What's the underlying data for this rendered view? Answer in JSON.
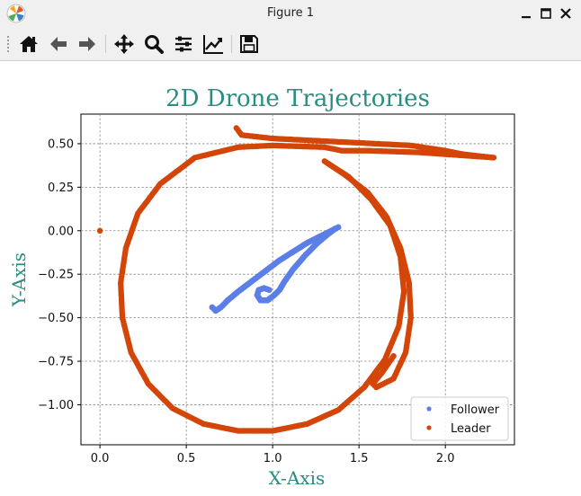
{
  "window": {
    "title": "Figure 1",
    "app_icon": "matplotlib-icon",
    "controls": [
      "minimize-icon",
      "maximize-icon",
      "close-icon"
    ]
  },
  "toolbar": {
    "buttons": [
      {
        "name": "home-icon",
        "label": "Home"
      },
      {
        "name": "back-icon",
        "label": "Back"
      },
      {
        "name": "forward-icon",
        "label": "Forward"
      },
      {
        "name": "pan-icon",
        "label": "Pan"
      },
      {
        "name": "zoom-icon",
        "label": "Zoom"
      },
      {
        "name": "subplots-icon",
        "label": "Subplots"
      },
      {
        "name": "customize-icon",
        "label": "Customize"
      },
      {
        "name": "save-icon",
        "label": "Save"
      }
    ]
  },
  "colors": {
    "title": "#2a8c82",
    "axis_label": "#2a8c82",
    "follower": "#5b7fe6",
    "leader": "#d34508"
  },
  "chart_data": {
    "type": "scatter",
    "title": "2D Drone Trajectories",
    "xlabel": "X-Axis",
    "ylabel": "Y-Axis",
    "xlim": [
      -0.11,
      2.4
    ],
    "ylim": [
      -1.23,
      0.67
    ],
    "xticks": [
      0.0,
      0.5,
      1.0,
      1.5,
      2.0
    ],
    "xtick_labels": [
      "0.0",
      "0.5",
      "1.0",
      "1.5",
      "2.0"
    ],
    "yticks": [
      0.5,
      0.25,
      0.0,
      -0.25,
      -0.5,
      -0.75,
      -1.0
    ],
    "ytick_labels": [
      "0.50",
      "0.25",
      "0.00",
      "−0.25",
      "−0.50",
      "−0.75",
      "−1.00"
    ],
    "grid": true,
    "legend_position": "lower-right",
    "series": [
      {
        "name": "Follower",
        "color": "#5b7fe6",
        "points": [
          [
            0.65,
            -0.44
          ],
          [
            0.67,
            -0.46
          ],
          [
            0.7,
            -0.44
          ],
          [
            0.74,
            -0.4
          ],
          [
            0.8,
            -0.35
          ],
          [
            0.88,
            -0.29
          ],
          [
            0.96,
            -0.23
          ],
          [
            1.04,
            -0.17
          ],
          [
            1.12,
            -0.12
          ],
          [
            1.2,
            -0.07
          ],
          [
            1.28,
            -0.03
          ],
          [
            1.34,
            0.0
          ],
          [
            1.38,
            0.02
          ],
          [
            1.36,
            0.01
          ],
          [
            1.32,
            -0.02
          ],
          [
            1.26,
            -0.07
          ],
          [
            1.19,
            -0.14
          ],
          [
            1.12,
            -0.22
          ],
          [
            1.07,
            -0.29
          ],
          [
            1.04,
            -0.34
          ],
          [
            1.01,
            -0.37
          ],
          [
            0.97,
            -0.4
          ],
          [
            0.93,
            -0.4
          ],
          [
            0.91,
            -0.37
          ],
          [
            0.92,
            -0.34
          ],
          [
            0.95,
            -0.33
          ],
          [
            0.98,
            -0.34
          ]
        ]
      },
      {
        "name": "Leader",
        "color": "#d34508",
        "points": [
          [
            0.0,
            0.0
          ],
          [
            0.79,
            0.59
          ],
          [
            0.82,
            0.55
          ],
          [
            1.0,
            0.53
          ],
          [
            1.2,
            0.52
          ],
          [
            1.4,
            0.51
          ],
          [
            1.6,
            0.5
          ],
          [
            1.8,
            0.49
          ],
          [
            2.0,
            0.46
          ],
          [
            2.1,
            0.44
          ],
          [
            2.28,
            0.42
          ],
          [
            1.85,
            0.45
          ],
          [
            1.55,
            0.46
          ],
          [
            1.4,
            0.46
          ],
          [
            1.3,
            0.48
          ],
          [
            1.0,
            0.49
          ],
          [
            0.8,
            0.48
          ],
          [
            0.55,
            0.42
          ],
          [
            0.35,
            0.27
          ],
          [
            0.22,
            0.1
          ],
          [
            0.15,
            -0.1
          ],
          [
            0.12,
            -0.3
          ],
          [
            0.13,
            -0.5
          ],
          [
            0.18,
            -0.7
          ],
          [
            0.28,
            -0.88
          ],
          [
            0.42,
            -1.02
          ],
          [
            0.6,
            -1.11
          ],
          [
            0.8,
            -1.15
          ],
          [
            1.0,
            -1.15
          ],
          [
            1.2,
            -1.11
          ],
          [
            1.38,
            -1.03
          ],
          [
            1.53,
            -0.9
          ],
          [
            1.65,
            -0.74
          ],
          [
            1.73,
            -0.55
          ],
          [
            1.76,
            -0.35
          ],
          [
            1.74,
            -0.15
          ],
          [
            1.68,
            0.03
          ],
          [
            1.57,
            0.18
          ],
          [
            1.44,
            0.31
          ],
          [
            1.3,
            0.4
          ],
          [
            1.42,
            0.32
          ],
          [
            1.55,
            0.22
          ],
          [
            1.66,
            0.08
          ],
          [
            1.74,
            -0.1
          ],
          [
            1.79,
            -0.3
          ],
          [
            1.8,
            -0.5
          ],
          [
            1.77,
            -0.7
          ],
          [
            1.7,
            -0.85
          ],
          [
            1.6,
            -0.9
          ],
          [
            1.58,
            -0.88
          ],
          [
            1.63,
            -0.82
          ],
          [
            1.7,
            -0.72
          ]
        ]
      }
    ]
  }
}
